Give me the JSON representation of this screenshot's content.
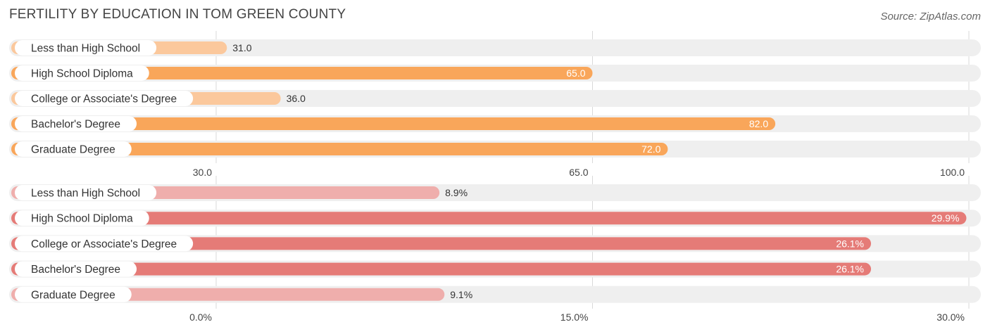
{
  "title": "FERTILITY BY EDUCATION IN TOM GREEN COUNTY",
  "source": "Source: ZipAtlas.com",
  "colors": {
    "panel1_bar": "#f9a65a",
    "panel1_bar_light": "#fbc89c",
    "panel2_bar": "#e57b77",
    "panel2_bar_light": "#efaeac",
    "track": "#efefef",
    "grid": "#d9d9d9"
  },
  "chart_data": [
    {
      "type": "bar",
      "orientation": "horizontal",
      "categories": [
        "Less than High School",
        "High School Diploma",
        "College or Associate's Degree",
        "Bachelor's Degree",
        "Graduate Degree"
      ],
      "values": [
        31.0,
        65.0,
        36.0,
        82.0,
        72.0
      ],
      "value_labels": [
        "31.0",
        "65.0",
        "36.0",
        "82.0",
        "72.0"
      ],
      "xlim": [
        30.0,
        100.0
      ],
      "ticks": [
        "30.0",
        "65.0",
        "100.0"
      ],
      "grid": true
    },
    {
      "type": "bar",
      "orientation": "horizontal",
      "categories": [
        "Less than High School",
        "High School Diploma",
        "College or Associate's Degree",
        "Bachelor's Degree",
        "Graduate Degree"
      ],
      "values": [
        8.9,
        29.9,
        26.1,
        26.1,
        9.1
      ],
      "value_labels": [
        "8.9%",
        "29.9%",
        "26.1%",
        "26.1%",
        "9.1%"
      ],
      "xlim": [
        0.0,
        30.0
      ],
      "ticks": [
        "0.0%",
        "15.0%",
        "30.0%"
      ],
      "grid": true
    }
  ]
}
